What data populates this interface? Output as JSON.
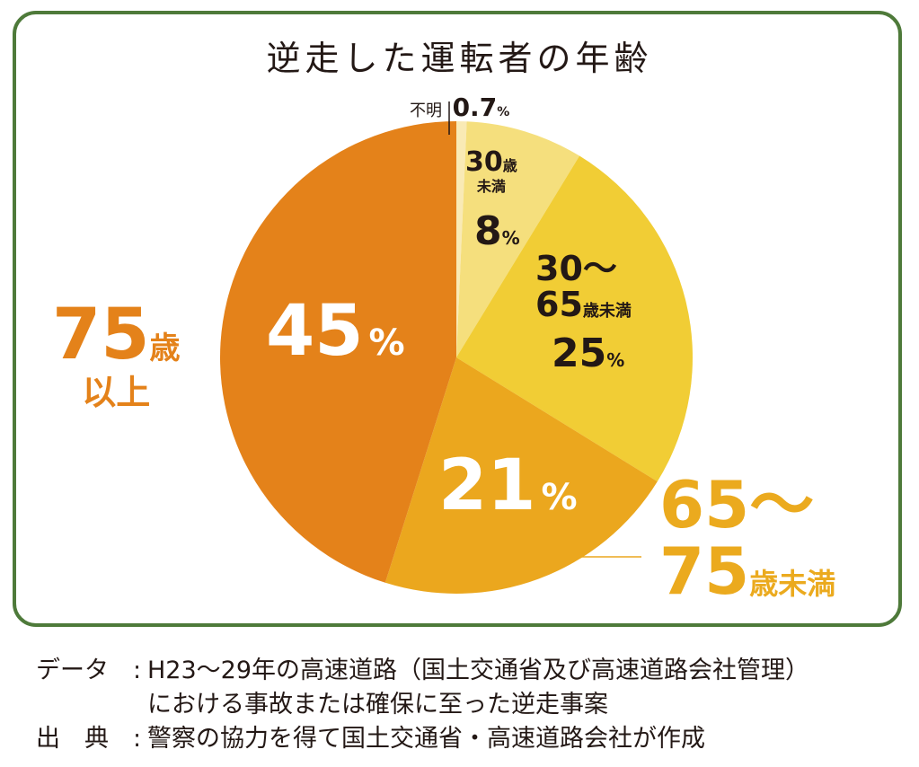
{
  "title": "逆走した運転者の年齢",
  "colors": {
    "frame": "#4e7a3a",
    "slice_75_over": "#e4821a",
    "slice_65_75": "#eba71e",
    "slice_30_65": "#f1cd35",
    "slice_under30": "#f5df7d",
    "slice_unknown": "#f9eab5"
  },
  "labels": {
    "unknown_name": "不明",
    "unknown_value": "0.7",
    "unknown_unit": "%",
    "under30_num": "30",
    "under30_unit": "歳",
    "under30_rest": "未満",
    "under30_value": "8",
    "under30_pct": "%",
    "a30_65_line1": "30〜",
    "a30_65_line2_num": "65",
    "a30_65_line2_unit": "歳未満",
    "a30_65_value": "25",
    "a30_65_pct": "%",
    "a75_value": "45",
    "a75_pct": "%",
    "a75_name_num": "75",
    "a75_name_unit": "歳",
    "a75_name_line2": "以上",
    "a65_75_value": "21",
    "a65_75_pct": "%",
    "a65_75_line1": "65〜",
    "a65_75_line2_num": "75",
    "a65_75_line2_unit": "歳未満"
  },
  "footer": {
    "data_key": "データ",
    "data_colon": ":",
    "data_line1": "H23〜29年の高速道路（国土交通省及び高速道路会社管理）",
    "data_line2": "における事故または確保に至った逆走事案",
    "source_key": "出　典",
    "source_colon": ":",
    "source_line": "警察の協力を得て国土交通省・高速道路会社が作成"
  },
  "chart_data": {
    "type": "pie",
    "title": "逆走した運転者の年齢",
    "unit": "%",
    "start": "12 o'clock, clockwise",
    "slices": [
      {
        "label": "不明",
        "value": 0.7
      },
      {
        "label": "30歳未満",
        "value": 8
      },
      {
        "label": "30〜65歳未満",
        "value": 25
      },
      {
        "label": "65〜75歳未満",
        "value": 21
      },
      {
        "label": "75歳以上",
        "value": 45
      }
    ]
  }
}
